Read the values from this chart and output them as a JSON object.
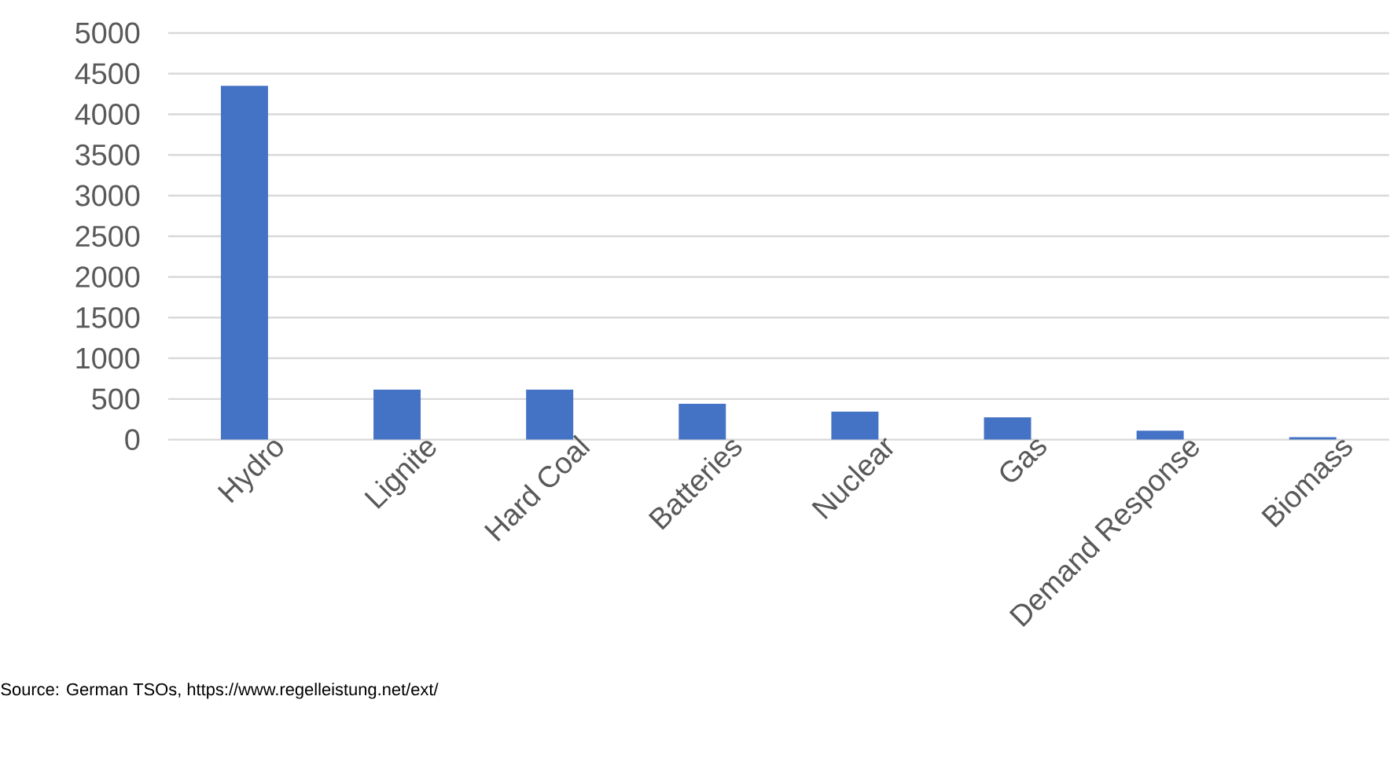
{
  "chart_data": {
    "type": "bar",
    "categories": [
      "Hydro",
      "Lignite",
      "Hard Coal",
      "Batteries",
      "Nuclear",
      "Gas",
      "Demand Response",
      "Biomass"
    ],
    "values": [
      4350,
      615,
      615,
      440,
      345,
      275,
      110,
      30
    ],
    "color": "#4472c4",
    "ylim": [
      0,
      5000
    ],
    "yticks": [
      0,
      500,
      1000,
      1500,
      2000,
      2500,
      3000,
      3500,
      4000,
      4500,
      5000
    ],
    "grid": "y",
    "annotations": [
      "Source: German TSOs, https://www.regelleistung.net/ext/"
    ]
  }
}
